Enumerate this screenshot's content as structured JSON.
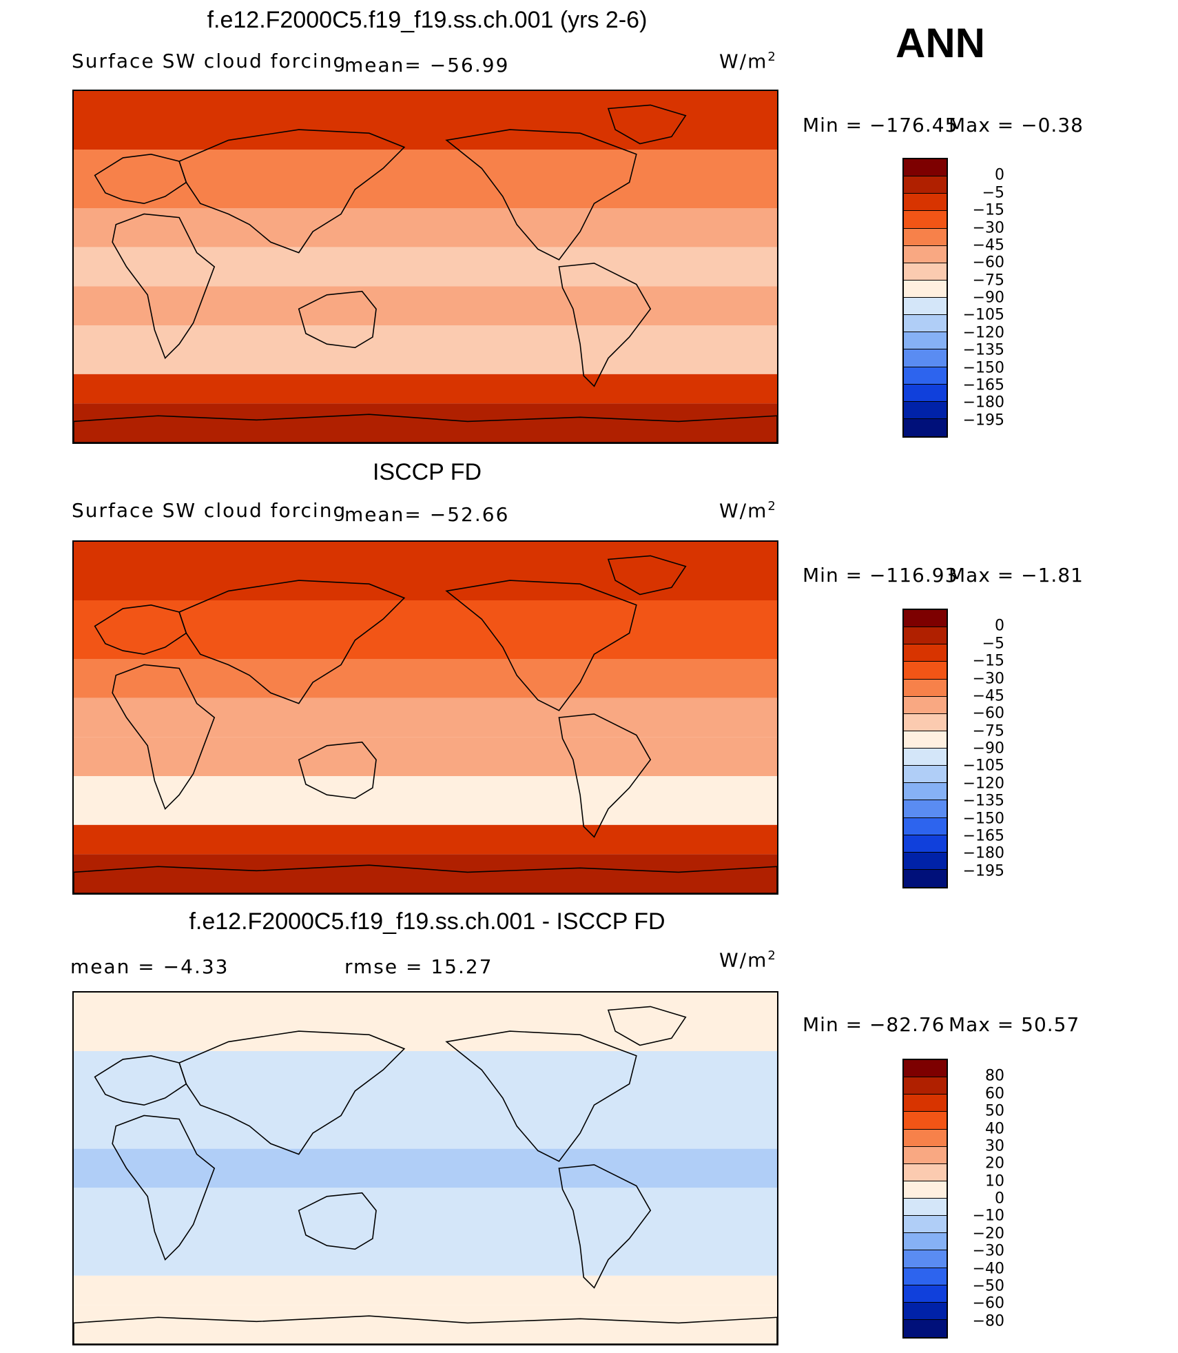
{
  "season": "ANN",
  "colors": {
    "abs_scale": [
      "#7d0000",
      "#b02000",
      "#d83400",
      "#f25516",
      "#f7814a",
      "#f9a882",
      "#fbcbb0",
      "#fff0e0",
      "#d4e6f9",
      "#b0cef7",
      "#86b1f5",
      "#5a8cf2",
      "#2d64ee",
      "#1040dc",
      "#0022a8",
      "#00107a"
    ],
    "diff_scale": [
      "#7d0000",
      "#b02000",
      "#d83400",
      "#f25516",
      "#f7814a",
      "#f9a882",
      "#fbcbb0",
      "#fff0e0",
      "#d4e6f9",
      "#b0cef7",
      "#86b1f5",
      "#5a8cf2",
      "#2d64ee",
      "#1040dc",
      "#0022a8",
      "#00107a"
    ]
  },
  "chart_data": [
    {
      "type": "heatmap",
      "title": "f.e12.F2000C5.f19_f19.ss.ch.001 (yrs 2-6)",
      "subtitle": "Surface SW cloud forcing",
      "mean_text": "mean=  −56.99",
      "units": "W/m",
      "units_sup": "2",
      "min_text": "Min  =  −176.45",
      "max_text": "Max  =   −0.38",
      "colorbar_labels": [
        "0",
        "−5",
        "−15",
        "−30",
        "−45",
        "−60",
        "−75",
        "−90",
        "−105",
        "−120",
        "−135",
        "−150",
        "−165",
        "−180",
        "−195"
      ],
      "bands": [
        {
          "lat_range": [
            60,
            90
          ],
          "level": 2
        },
        {
          "lat_range": [
            30,
            60
          ],
          "level": 4
        },
        {
          "lat_range": [
            10,
            30
          ],
          "level": 5
        },
        {
          "lat_range": [
            -10,
            10
          ],
          "level": 6
        },
        {
          "lat_range": [
            -30,
            -10
          ],
          "level": 5
        },
        {
          "lat_range": [
            -55,
            -30
          ],
          "level": 6
        },
        {
          "lat_range": [
            -70,
            -55
          ],
          "level": 2
        },
        {
          "lat_range": [
            -90,
            -70
          ],
          "level": 1
        }
      ]
    },
    {
      "type": "heatmap",
      "title": "ISCCP FD",
      "subtitle": "Surface SW cloud forcing",
      "mean_text": "mean=  −52.66",
      "units": "W/m",
      "units_sup": "2",
      "min_text": "Min  =  −116.93",
      "max_text": "Max  =   −1.81",
      "colorbar_labels": [
        "0",
        "−5",
        "−15",
        "−30",
        "−45",
        "−60",
        "−75",
        "−90",
        "−105",
        "−120",
        "−135",
        "−150",
        "−165",
        "−180",
        "−195"
      ],
      "bands": [
        {
          "lat_range": [
            60,
            90
          ],
          "level": 2
        },
        {
          "lat_range": [
            30,
            60
          ],
          "level": 3
        },
        {
          "lat_range": [
            10,
            30
          ],
          "level": 4
        },
        {
          "lat_range": [
            -10,
            10
          ],
          "level": 5
        },
        {
          "lat_range": [
            -30,
            -10
          ],
          "level": 5
        },
        {
          "lat_range": [
            -55,
            -30
          ],
          "level": 7
        },
        {
          "lat_range": [
            -70,
            -55
          ],
          "level": 2
        },
        {
          "lat_range": [
            -90,
            -70
          ],
          "level": 1
        }
      ]
    },
    {
      "type": "heatmap",
      "title": "f.e12.F2000C5.f19_f19.ss.ch.001 - ISCCP FD",
      "subtitle": "mean  =    −4.33",
      "mean_text": "rmse  =    15.27",
      "units": "W/m",
      "units_sup": "2",
      "min_text": "Min  =  −82.76",
      "max_text": "Max  =    50.57",
      "colorbar_labels": [
        "80",
        "60",
        "50",
        "40",
        "30",
        "20",
        "10",
        "0",
        "−10",
        "−20",
        "−30",
        "−40",
        "−50",
        "−60",
        "−80"
      ],
      "bands": [
        {
          "lat_range": [
            60,
            90
          ],
          "level": 7
        },
        {
          "lat_range": [
            30,
            60
          ],
          "level": 8
        },
        {
          "lat_range": [
            10,
            30
          ],
          "level": 8
        },
        {
          "lat_range": [
            -10,
            10
          ],
          "level": 9
        },
        {
          "lat_range": [
            -30,
            -10
          ],
          "level": 8
        },
        {
          "lat_range": [
            -55,
            -30
          ],
          "level": 8
        },
        {
          "lat_range": [
            -70,
            -55
          ],
          "level": 7
        },
        {
          "lat_range": [
            -90,
            -70
          ],
          "level": 7
        }
      ]
    }
  ]
}
